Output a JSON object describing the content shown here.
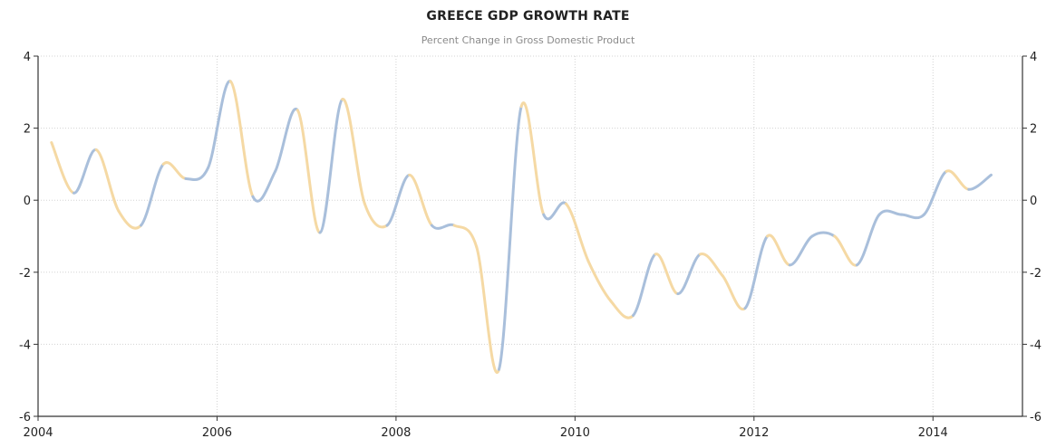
{
  "chart_data": {
    "type": "line",
    "title": "GREECE GDP GROWTH RATE",
    "subtitle": "Percent Change in Gross Domestic Product",
    "xlabel": "",
    "ylabel": "",
    "xlim": [
      2004,
      2015
    ],
    "ylim": [
      -6,
      4
    ],
    "x_ticks": [
      "2004",
      "2006",
      "2008",
      "2010",
      "2012",
      "2014"
    ],
    "y_ticks": [
      "-6",
      "-4",
      "-2",
      "0",
      "2",
      "4"
    ],
    "grid": true,
    "colors": {
      "increase": "#a9bfdb",
      "decrease": "#f5d9a4",
      "axis": "#333333",
      "grid": "#d3d3d3"
    },
    "series": [
      {
        "x": [
          2004.15,
          2004.4,
          2004.65,
          2004.9,
          2005.15,
          2005.4,
          2005.65,
          2005.9,
          2006.15,
          2006.4,
          2006.65,
          2006.9,
          2007.15,
          2007.4,
          2007.65,
          2007.9,
          2008.15,
          2008.4,
          2008.65,
          2008.9,
          2009.15,
          2009.4,
          2009.65,
          2009.9,
          2010.15,
          2010.4,
          2010.65,
          2010.9,
          2011.15,
          2011.4,
          2011.65,
          2011.9,
          2012.15,
          2012.4,
          2012.65,
          2012.9,
          2013.15,
          2013.4,
          2013.65,
          2013.9,
          2014.15,
          2014.4,
          2014.65
        ],
        "values": [
          1.6,
          0.2,
          1.4,
          -0.3,
          -0.7,
          1.0,
          0.6,
          0.9,
          3.3,
          0.1,
          0.8,
          2.5,
          -0.9,
          2.8,
          -0.1,
          -0.7,
          0.7,
          -0.7,
          -0.7,
          -1.3,
          -4.7,
          2.6,
          -0.4,
          -0.1,
          -1.7,
          -2.8,
          -3.2,
          -1.5,
          -2.6,
          -1.5,
          -2.1,
          -3.0,
          -1.0,
          -1.8,
          -1.0,
          -1.0,
          -1.8,
          -0.4,
          -0.4,
          -0.4,
          0.8,
          0.3,
          0.7
        ]
      }
    ]
  }
}
